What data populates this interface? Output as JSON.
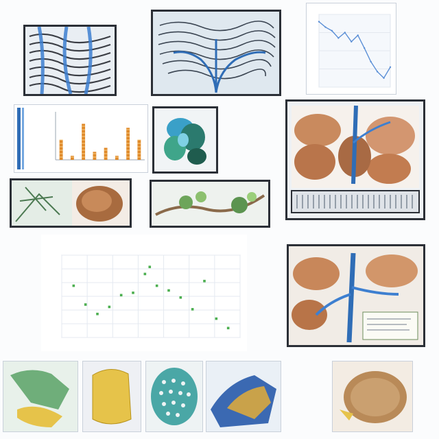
{
  "icons": {
    "vessel_panel": "anatomy-illustration-icon",
    "chart_panel": "line-chart-icon",
    "scatter_panel": "scatter-chart-icon"
  },
  "colors": {
    "vessel_blue": "#2f6db6",
    "tissue_brown": "#c88a5a",
    "cartilage_yellow": "#e6c34a",
    "cell_teal": "#4aa7a6",
    "scatter_green": "#4caf50",
    "bar_orange": "#e08a2a"
  },
  "chart_data": [
    {
      "type": "line",
      "title": "",
      "xlabel": "",
      "ylabel": "",
      "x": [
        1,
        2,
        3,
        4,
        5,
        6,
        7,
        8,
        9,
        10,
        11,
        12
      ],
      "series": [
        {
          "values": [
            92,
            86,
            82,
            74,
            80,
            70,
            77,
            63,
            48,
            37,
            30,
            42
          ]
        }
      ],
      "ylim": [
        20,
        100
      ],
      "grid": true
    },
    {
      "type": "bar",
      "title": "",
      "xlabel": "",
      "ylabel": "",
      "categories": [
        "1",
        "2",
        "3",
        "4",
        "5",
        "6",
        "7",
        "8"
      ],
      "values": [
        5,
        1,
        9,
        2,
        3,
        1,
        8,
        5
      ],
      "ylim": [
        0,
        12
      ],
      "grid": false
    },
    {
      "type": "scatter",
      "title": "",
      "xlabel": "",
      "ylabel": "",
      "points": [
        [
          1,
          0.47
        ],
        [
          1.5,
          0.39
        ],
        [
          2,
          0.35
        ],
        [
          2.5,
          0.38
        ],
        [
          3,
          0.43
        ],
        [
          3.5,
          0.44
        ],
        [
          4,
          0.52
        ],
        [
          4.5,
          0.47
        ],
        [
          5,
          0.45
        ],
        [
          5.5,
          0.42
        ],
        [
          6,
          0.37
        ],
        [
          6.5,
          0.49
        ],
        [
          7,
          0.33
        ],
        [
          7.5,
          0.29
        ],
        [
          4.2,
          0.55
        ]
      ],
      "xlim": [
        0.5,
        8
      ],
      "ylim": [
        0.25,
        0.6
      ],
      "grid": true
    }
  ]
}
